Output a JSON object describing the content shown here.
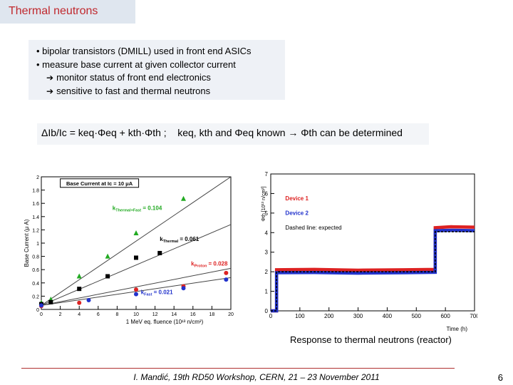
{
  "slide": {
    "title": "Thermal neutrons",
    "bullets": [
      "• bipolar transistors (DMILL) used in front end ASICs",
      "• measure base current at given collector current"
    ],
    "sub_bullets": [
      "monitor status of front end electronics",
      "sensitive to fast and thermal neutrons"
    ],
    "arrow_glyph": "➔",
    "formula": {
      "lhs": "ΔIb/Ic = keq·Φeq + kth·Φth ;",
      "rhs": "keq, kth and Φeq known → Φth can be determined"
    },
    "caption": "Response to thermal neutrons (reactor)",
    "footer": "I. Mandić, 19th RD50 Workshop, CERN, 21 – 23 November 2011",
    "page_number": "6"
  },
  "chart_data": [
    {
      "type": "scatter",
      "xlabel": "1 MeV eq. fluence (10¹³ n/cm²)",
      "ylabel": "Base Current (μ A)",
      "legend_title": "Base Current at Ic = 10 μA",
      "xlim": [
        0,
        20
      ],
      "ylim": [
        0,
        2
      ],
      "xticks": [
        "0",
        "2",
        "4",
        "6",
        "8",
        "10",
        "12",
        "14",
        "16",
        "18",
        "20"
      ],
      "yticks": [
        "0",
        "0.2",
        "0.4",
        "0.6",
        "0.8",
        "1",
        "1.2",
        "1.4",
        "1.6",
        "1.8",
        "2"
      ],
      "grid": false,
      "series": [
        {
          "name": "kThermal+Fast = 0.104",
          "color": "#22aa22",
          "marker": "triangle",
          "x": [
            0,
            1,
            4,
            7,
            10,
            15
          ],
          "y": [
            0.1,
            0.15,
            0.5,
            0.8,
            1.15,
            1.67
          ],
          "fit_slope": 0.104
        },
        {
          "name": "kThermal = 0.061",
          "color": "#000000",
          "marker": "square",
          "x": [
            0,
            1,
            4,
            7,
            10,
            12.5
          ],
          "y": [
            0.08,
            0.11,
            0.31,
            0.5,
            0.78,
            0.85
          ],
          "fit_slope": 0.061
        },
        {
          "name": "kProton = 0.028",
          "color": "#dd2222",
          "marker": "circle",
          "x": [
            0,
            4,
            10,
            15,
            19.5
          ],
          "y": [
            0.05,
            0.1,
            0.3,
            0.35,
            0.55
          ],
          "fit_slope": 0.028
        },
        {
          "name": "kFast = 0.021",
          "color": "#2233cc",
          "marker": "circle",
          "x": [
            0,
            5,
            10,
            15,
            19.5
          ],
          "y": [
            0.06,
            0.14,
            0.23,
            0.32,
            0.45
          ],
          "fit_slope": 0.021
        }
      ],
      "labels": [
        {
          "main": "k",
          "sub": "Thermal+Fast",
          "value": " = 0.104",
          "color": "#22aa22"
        },
        {
          "main": "k",
          "sub": "Thermal",
          "value": " = 0.061",
          "color": "#000000"
        },
        {
          "main": "k",
          "sub": "Proton",
          "value": " = 0.028",
          "color": "#dd2222"
        },
        {
          "main": "k",
          "sub": "Fast",
          "value": " = 0.021",
          "color": "#2233cc"
        }
      ]
    },
    {
      "type": "line",
      "xlabel": "Time (h)",
      "ylabel": "Φth [10¹³ n/cm²]",
      "xlim": [
        0,
        700
      ],
      "ylim": [
        0,
        7
      ],
      "xticks": [
        "0",
        "100",
        "200",
        "300",
        "400",
        "500",
        "600",
        "700"
      ],
      "yticks": [
        "0",
        "1",
        "2",
        "3",
        "4",
        "5",
        "6",
        "7"
      ],
      "grid": false,
      "legend": [
        "Device 1",
        "Device 2",
        "Dashed line: expected"
      ],
      "legend_colors": [
        "#dd2222",
        "#2233cc",
        "#000000"
      ],
      "series": [
        {
          "name": "Device 1",
          "color": "#dd2222",
          "x": [
            0,
            20,
            20,
            150,
            300,
            460,
            565,
            565,
            620,
            700
          ],
          "y": [
            0,
            0,
            2.1,
            2.12,
            2.08,
            2.1,
            2.12,
            4.25,
            4.3,
            4.28
          ]
        },
        {
          "name": "Device 2",
          "color": "#2233cc",
          "x": [
            0,
            20,
            20,
            150,
            300,
            460,
            565,
            565,
            620,
            700
          ],
          "y": [
            0,
            0,
            1.95,
            1.96,
            1.93,
            1.95,
            1.97,
            4.1,
            4.12,
            4.1
          ]
        },
        {
          "name": "Dashed line: expected",
          "color": "#000000",
          "style": "dashed",
          "x": [
            0,
            20,
            20,
            565,
            565,
            700
          ],
          "y": [
            0,
            0,
            2.0,
            2.0,
            4.05,
            4.05
          ]
        }
      ]
    }
  ]
}
